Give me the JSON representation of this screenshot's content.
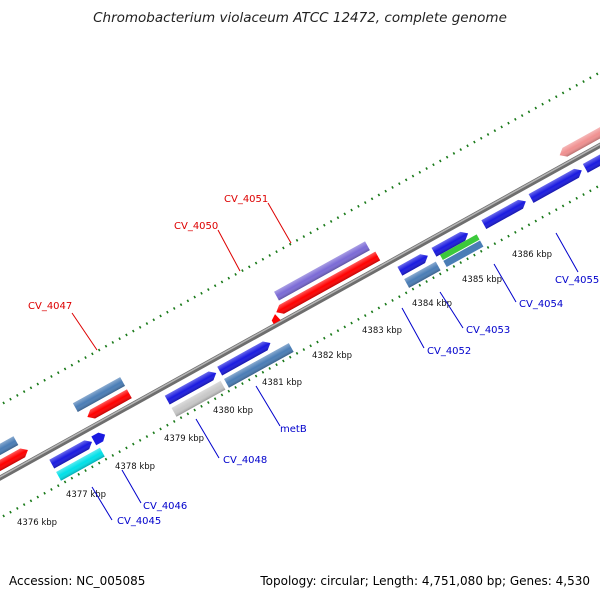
{
  "title": "Chromobacterium violaceum ATCC 12472, complete genome",
  "footer": {
    "accession": "Accession: NC_005085",
    "summary": "Topology: circular; Length: 4,751,080 bp; Genes: 4,530"
  },
  "colors": {
    "backbone": "#8a8a8a",
    "ticks": "#1a7a1a",
    "label_reverse": "#dd0000",
    "label_forward": "#0000cc"
  },
  "kbp_labels": [
    "4376 kbp",
    "4377 kbp",
    "4378 kbp",
    "4379 kbp",
    "4380 kbp",
    "4381 kbp",
    "4382 kbp",
    "4383 kbp",
    "4384 kbp",
    "4385 kbp",
    "4386 kbp"
  ],
  "gene_labels": [
    {
      "id": "CV_4047",
      "strand": "reverse"
    },
    {
      "id": "CV_4050",
      "strand": "reverse"
    },
    {
      "id": "CV_4051",
      "strand": "reverse"
    },
    {
      "id": "CV_4045",
      "strand": "forward"
    },
    {
      "id": "CV_4046",
      "strand": "forward"
    },
    {
      "id": "CV_4048",
      "strand": "forward"
    },
    {
      "id": "metB",
      "strand": "forward"
    },
    {
      "id": "CV_4052",
      "strand": "forward"
    },
    {
      "id": "CV_4053",
      "strand": "forward"
    },
    {
      "id": "CV_4054",
      "strand": "forward"
    },
    {
      "id": "CV_4055",
      "strand": "forward"
    }
  ]
}
